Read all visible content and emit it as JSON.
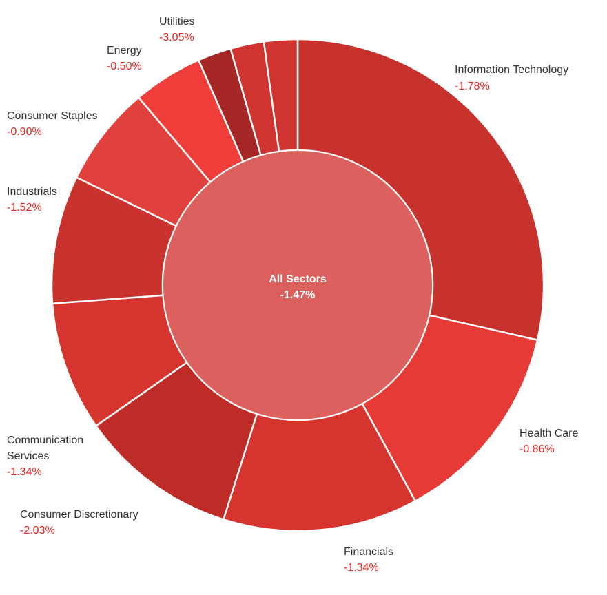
{
  "chart_data": {
    "type": "pie",
    "variant": "donut",
    "center": {
      "name": "All Sectors",
      "change": "-1.47%",
      "color": "#dc605e"
    },
    "categories": [
      "Information Technology",
      "Health Care",
      "Financials",
      "Consumer Discretionary",
      "Communication Services",
      "Industrials",
      "Consumer Staples",
      "Energy",
      "",
      "Utilities",
      ""
    ],
    "series": [
      {
        "values": [
          29.9,
          14.1,
          13.4,
          10.9,
          8.9,
          8.8,
          6.9,
          4.8,
          2.3,
          2.3,
          2.3
        ],
        "changes": [
          "-1.78%",
          "-0.86%",
          "-1.34%",
          "-2.03%",
          "-1.34%",
          "-1.52%",
          "-0.90%",
          "-0.50%",
          "",
          "-3.05%",
          ""
        ],
        "colors": [
          "#c8322d",
          "#e63a36",
          "#d6342f",
          "#be2c28",
          "#d6342f",
          "#ca322d",
          "#e0413c",
          "#ef3e39",
          "#a52826",
          "#cf3430",
          "#cf3430"
        ]
      }
    ],
    "labels": [
      {
        "name_lines": [
          "Information Technology"
        ],
        "change": "-1.78%"
      },
      {
        "name_lines": [
          "Health Care"
        ],
        "change": "-0.86%"
      },
      {
        "name_lines": [
          "Financials"
        ],
        "change": "-1.34%"
      },
      {
        "name_lines": [
          "Consumer Discretionary"
        ],
        "change": "-2.03%"
      },
      {
        "name_lines": [
          "Communication",
          "Services"
        ],
        "change": "-1.34%"
      },
      {
        "name_lines": [
          "Industrials"
        ],
        "change": "-1.52%"
      },
      {
        "name_lines": [
          "Consumer Staples"
        ],
        "change": "-0.90%"
      },
      {
        "name_lines": [
          "Energy"
        ],
        "change": "-0.50%"
      },
      {
        "name_lines": [
          "Utilities"
        ],
        "change": "-3.05%"
      }
    ],
    "title": "",
    "legend": "none"
  }
}
